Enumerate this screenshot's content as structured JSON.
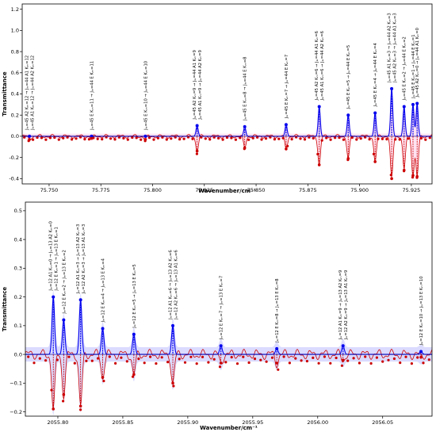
{
  "chart_data": [
    {
      "type": "line",
      "xlabel": "Wavenumber/cm⁻¹",
      "ylabel": "Transmittance",
      "xlim": [
        75.737,
        75.935
      ],
      "ylim": [
        -0.45,
        1.25
      ],
      "x_ticks": [
        75.75,
        75.775,
        75.8,
        75.825,
        75.85,
        75.875,
        75.9,
        75.925
      ],
      "x_tick_labels": [
        "75.750",
        "75.775",
        "75.800",
        "75.825",
        "75.850",
        "75.875",
        "75.900",
        "75.925"
      ],
      "y_ticks": [
        -0.4,
        -0.2,
        0.0,
        0.2,
        0.4,
        0.6,
        0.8,
        1.0,
        1.2
      ],
      "y_tick_labels": [
        "-0.4",
        "-0.2",
        "0.0",
        "0.2",
        "0.4",
        "0.6",
        "0.8",
        "1.0",
        "1.2"
      ],
      "grid": false,
      "colors": {
        "model": "#0000ee",
        "experiment": "#cc0000",
        "markers": "#cc0000",
        "band": "#ffb0d8"
      },
      "lines": [
        {
          "x": 75.7405,
          "up": 0.0,
          "down": -0.03,
          "labels": [
            "Jₗₑ=45 A2 Kₘ=12 → Jₗₑ=44 A1 Kₘ=12",
            "Jₗₑ=45 A1 Kₘ=12 → Jₗₑ=44 A2 Kₘ=12"
          ]
        },
        {
          "x": 75.7705,
          "up": 0.0,
          "down": -0.02,
          "labels": [
            "Jₗₑ=45 E Kₘ=11 → Jₗₑ=44 E Kₘ=11"
          ]
        },
        {
          "x": 75.7965,
          "up": 0.0,
          "down": -0.03,
          "labels": [
            "Jₗₑ=45 E Kₘ=10 → Jₗₑ=44 E Kₘ=10"
          ]
        },
        {
          "x": 75.8215,
          "up": 0.1,
          "down": -0.14,
          "labels": [
            "Jₗₑ=45 A2 Kₘ=9 → Jₗₑ=44 A1 Kₘ=9",
            "Jₗₑ=45 A1 Kₘ=9 → Jₗₑ=44 A2 Kₘ=9"
          ]
        },
        {
          "x": 75.8445,
          "up": 0.09,
          "down": -0.11,
          "labels": [
            "Jₗₑ=45 E Kₘ=8 → Jₗₑ=44 E Kₘ=8"
          ]
        },
        {
          "x": 75.8645,
          "up": 0.11,
          "down": -0.12,
          "labels": [
            "Jₗₑ=45 E Kₘ=7 → Jₗₑ=44 E Kₘ=7"
          ]
        },
        {
          "x": 75.8805,
          "up": 0.28,
          "down": -0.27,
          "labels": [
            "Jₗₑ=45 A2 Kₘ=6 → Jₗₑ=44 A1 Kₘ=6",
            "Jₗₑ=45 A1 Kₘ=6 → Jₗₑ=44 A2 Kₘ=6"
          ]
        },
        {
          "x": 75.8945,
          "up": 0.2,
          "down": -0.21,
          "labels": [
            "Jₗₑ=45 E Kₘ=5 → Jₗₑ=44 E Kₘ=5"
          ]
        },
        {
          "x": 75.9075,
          "up": 0.22,
          "down": -0.24,
          "labels": [
            "Jₗₑ=45 E Kₘ=4 → Jₗₑ=44 E Kₘ=4"
          ]
        },
        {
          "x": 75.9155,
          "up": 0.45,
          "down": -0.4,
          "labels": [
            "Jₗₑ=45 A1 Kₘ=3 → Jₗₑ=44 A2 Kₘ=3",
            "Jₗₑ=45 A2 Kₘ=3 → Jₗₑ=44 A1 Kₘ=3"
          ]
        },
        {
          "x": 75.9215,
          "up": 0.28,
          "down": -0.32,
          "labels": [
            "Jₗₑ=45 E Kₘ=2 → Jₗₑ=44 E Kₘ=2"
          ]
        },
        {
          "x": 75.9258,
          "up": 0.3,
          "down": -0.37,
          "labels": [
            "Jₗₑ=45 E Kₘ=1 → Jₗₑ=44 E Kₘ=1"
          ]
        },
        {
          "x": 75.9278,
          "up": 0.31,
          "down": -0.38,
          "labels": [
            "Jₗₑ=45 A2 Kₘ=0 → Jₗₑ=44 A1 Kₘ=0"
          ]
        }
      ]
    },
    {
      "type": "line",
      "xlabel": "Wavenumber/cm⁻¹",
      "ylabel": "Transmittance",
      "xlim": [
        2055.775,
        2056.088
      ],
      "ylim": [
        -0.215,
        0.53
      ],
      "x_ticks": [
        2055.8,
        2055.85,
        2055.9,
        2055.95,
        2056.0,
        2056.05
      ],
      "x_tick_labels": [
        "2055.80",
        "2055.85",
        "2055.90",
        "2055.95",
        "2056.00",
        "2056.05"
      ],
      "y_ticks": [
        -0.2,
        -0.1,
        0.0,
        0.1,
        0.2,
        0.3,
        0.4,
        0.5
      ],
      "y_tick_labels": [
        "−0.2",
        "−0.1",
        "0.0",
        "0.1",
        "0.2",
        "0.3",
        "0.4",
        "0.5"
      ],
      "grid": false,
      "colors": {
        "model": "#0000ee",
        "experiment": "#cc0000",
        "markers": "#cc0000",
        "band": "#9999ff"
      },
      "lines": [
        {
          "x": 2055.7965,
          "up": 0.2,
          "down": -0.19,
          "labels": [
            "Jₗₑ=12 A1 Kₘ=0 → Jₗₑ=13 A2 Kₘ=0",
            "Jₗₑ=12 E Kₘ=1 → Jₗₑ=13 E Kₘ=1"
          ]
        },
        {
          "x": 2055.8045,
          "up": 0.12,
          "down": -0.14,
          "labels": [
            "Jₗₑ=12 E Kₘ=2 → Jₗₑ=13 E Kₘ=2"
          ]
        },
        {
          "x": 2055.8175,
          "up": 0.19,
          "down": -0.18,
          "labels": [
            "Jₗₑ=12 A1 Kₘ=3 → Jₗₑ=13 A2 Kₘ=3",
            "Jₗₑ=12 A2 Kₘ=3 → Jₗₑ=13 A1 Kₘ=3"
          ]
        },
        {
          "x": 2055.8345,
          "up": 0.09,
          "down": -0.08,
          "labels": [
            "Jₗₑ=12 E Kₘ=4 → Jₗₑ=13 E Kₘ=4"
          ]
        },
        {
          "x": 2055.8585,
          "up": 0.07,
          "down": -0.07,
          "labels": [
            "Jₗₑ=12 E Kₘ=5 → Jₗₑ=13 E Kₘ=5"
          ]
        },
        {
          "x": 2055.8885,
          "up": 0.1,
          "down": -0.1,
          "labels": [
            "Jₗₑ=12 A1 Kₘ=6 → Jₗₑ=13 A2 Kₘ=6",
            "Jₗₑ=12 A2 Kₘ=6 → Jₗₑ=13 A1 Kₘ=6"
          ]
        },
        {
          "x": 2055.9255,
          "up": 0.03,
          "down": -0.03,
          "labels": [
            "Jₗₑ=12 E Kₘ=7 → Jₗₑ=13 E Kₘ=7"
          ]
        },
        {
          "x": 2055.9685,
          "up": 0.02,
          "down": -0.03,
          "labels": [
            "Jₗₑ=12 E Kₘ=8 → Jₗₑ=13 E Kₘ=8"
          ]
        },
        {
          "x": 2056.0195,
          "up": 0.03,
          "down": -0.02,
          "labels": [
            "Jₗₑ=12 A1 Kₘ=9 → Jₗₑ=13 A2 Kₘ=9",
            "Jₗₑ=12 A2 Kₘ=9 → Jₗₑ=13 A1 Kₘ=9"
          ]
        },
        {
          "x": 2056.0795,
          "up": 0.01,
          "down": -0.01,
          "labels": [
            "Jₗₑ=12 E Kₘ=10 → Jₗₑ=13 E Kₘ=10"
          ]
        }
      ]
    }
  ]
}
